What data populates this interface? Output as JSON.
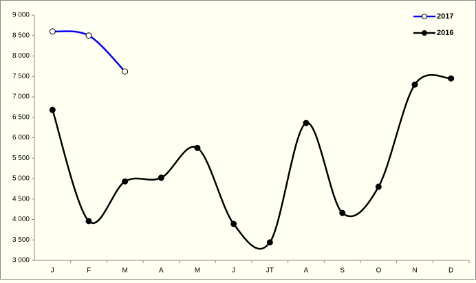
{
  "chart_data": {
    "type": "line",
    "categories": [
      "J",
      "F",
      "M",
      "A",
      "M",
      "J",
      "JT",
      "A",
      "S",
      "O",
      "N",
      "D"
    ],
    "series": [
      {
        "name": "2017",
        "color": "#0000ff",
        "values": [
          8600,
          8500,
          7620,
          null,
          null,
          null,
          null,
          null,
          null,
          null,
          null,
          null
        ]
      },
      {
        "name": "2016",
        "color": "#000000",
        "values": [
          6680,
          3960,
          4930,
          5020,
          5750,
          3890,
          3440,
          6360,
          4160,
          4800,
          7300,
          7450
        ]
      }
    ],
    "ylim": [
      3000,
      9000
    ],
    "yticks": [
      {
        "value": 3000,
        "label": "3 000"
      },
      {
        "value": 3500,
        "label": "3 500"
      },
      {
        "value": 4000,
        "label": "4 000"
      },
      {
        "value": 4500,
        "label": "4 500"
      },
      {
        "value": 5000,
        "label": "5 000"
      },
      {
        "value": 5500,
        "label": "5 500"
      },
      {
        "value": 6000,
        "label": "6 000"
      },
      {
        "value": 6500,
        "label": "6 500"
      },
      {
        "value": 7000,
        "label": "7 000"
      },
      {
        "value": 7500,
        "label": "7 500"
      },
      {
        "value": 8000,
        "label": "8 000"
      },
      {
        "value": 8500,
        "label": "8 500"
      },
      {
        "value": 9000,
        "label": "9 000"
      }
    ],
    "smooth": true,
    "legend": "top-right"
  }
}
